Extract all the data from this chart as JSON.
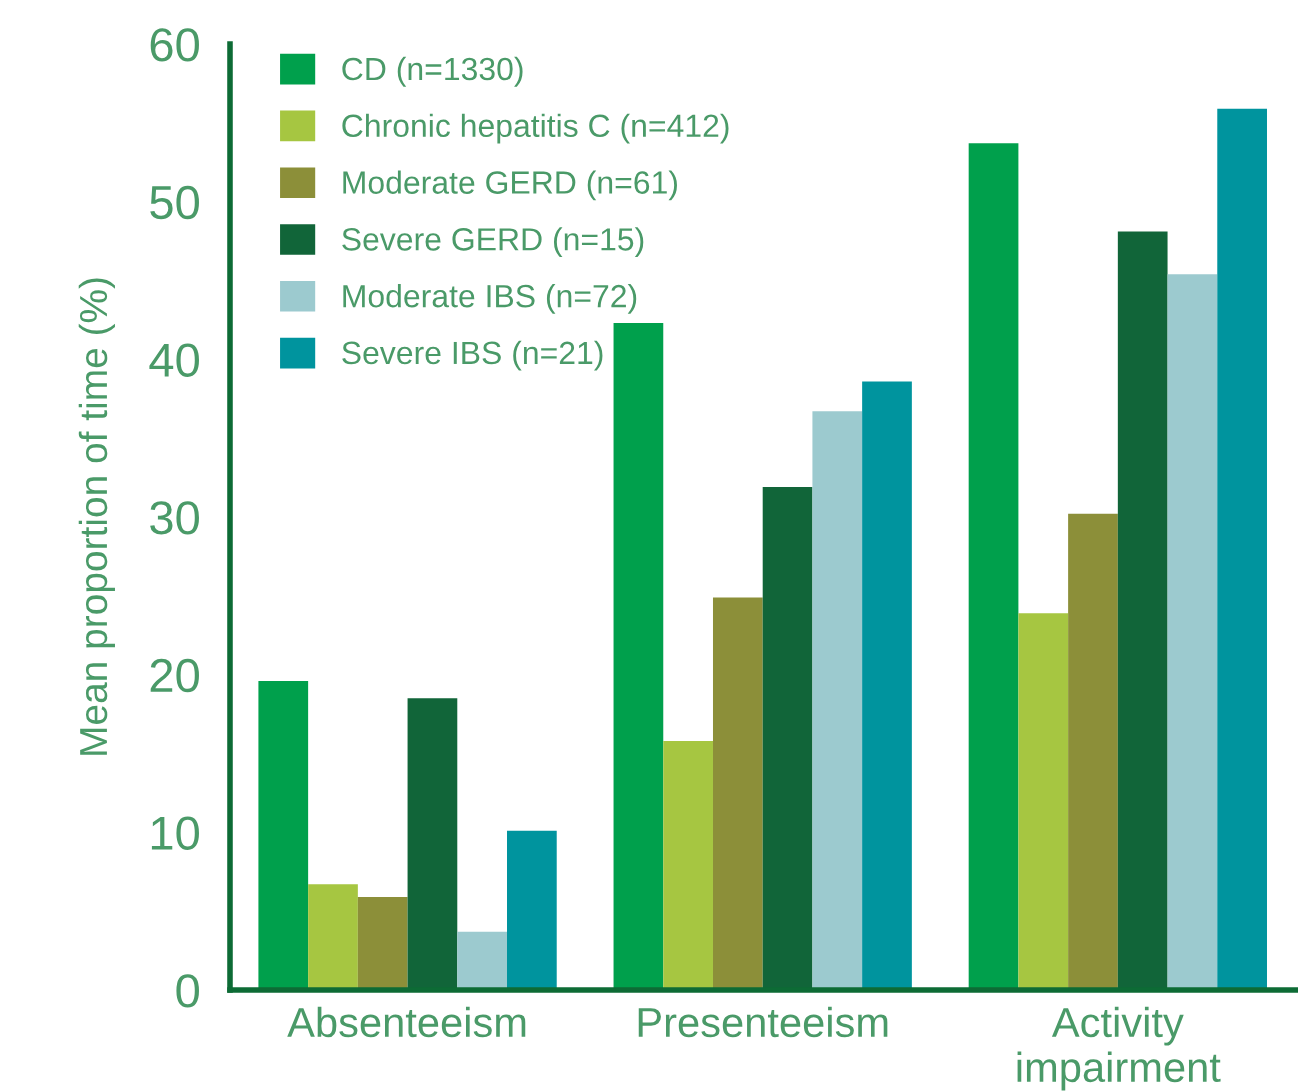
{
  "chart_data": {
    "type": "bar",
    "ylabel": "Mean proportion of time (%)",
    "categories": [
      "Absenteeism",
      "Presenteeism",
      "Activity\nimpairment"
    ],
    "series": [
      {
        "name": "CD (n=1330)",
        "color": "#00a04c",
        "values": [
          19.6,
          42.3,
          53.7
        ]
      },
      {
        "name": "Chronic hepatitis C (n=412)",
        "color": "#a6c641",
        "values": [
          6.7,
          15.8,
          23.9
        ]
      },
      {
        "name": "Moderate GERD (n=61)",
        "color": "#8c8f39",
        "values": [
          5.9,
          24.9,
          30.2
        ]
      },
      {
        "name": "Severe GERD (n=15)",
        "color": "#116539",
        "values": [
          18.5,
          31.9,
          48.1
        ]
      },
      {
        "name": "Moderate IBS (n=72)",
        "color": "#9ccacf",
        "values": [
          3.7,
          36.7,
          45.4
        ]
      },
      {
        "name": "Severe IBS (n=21)",
        "color": "#00949e",
        "values": [
          10.1,
          38.6,
          55.9
        ]
      }
    ],
    "ylim": [
      0,
      60
    ],
    "yticks": [
      0,
      10,
      20,
      30,
      40,
      50,
      60
    ],
    "grid": false,
    "legend": "top left"
  }
}
